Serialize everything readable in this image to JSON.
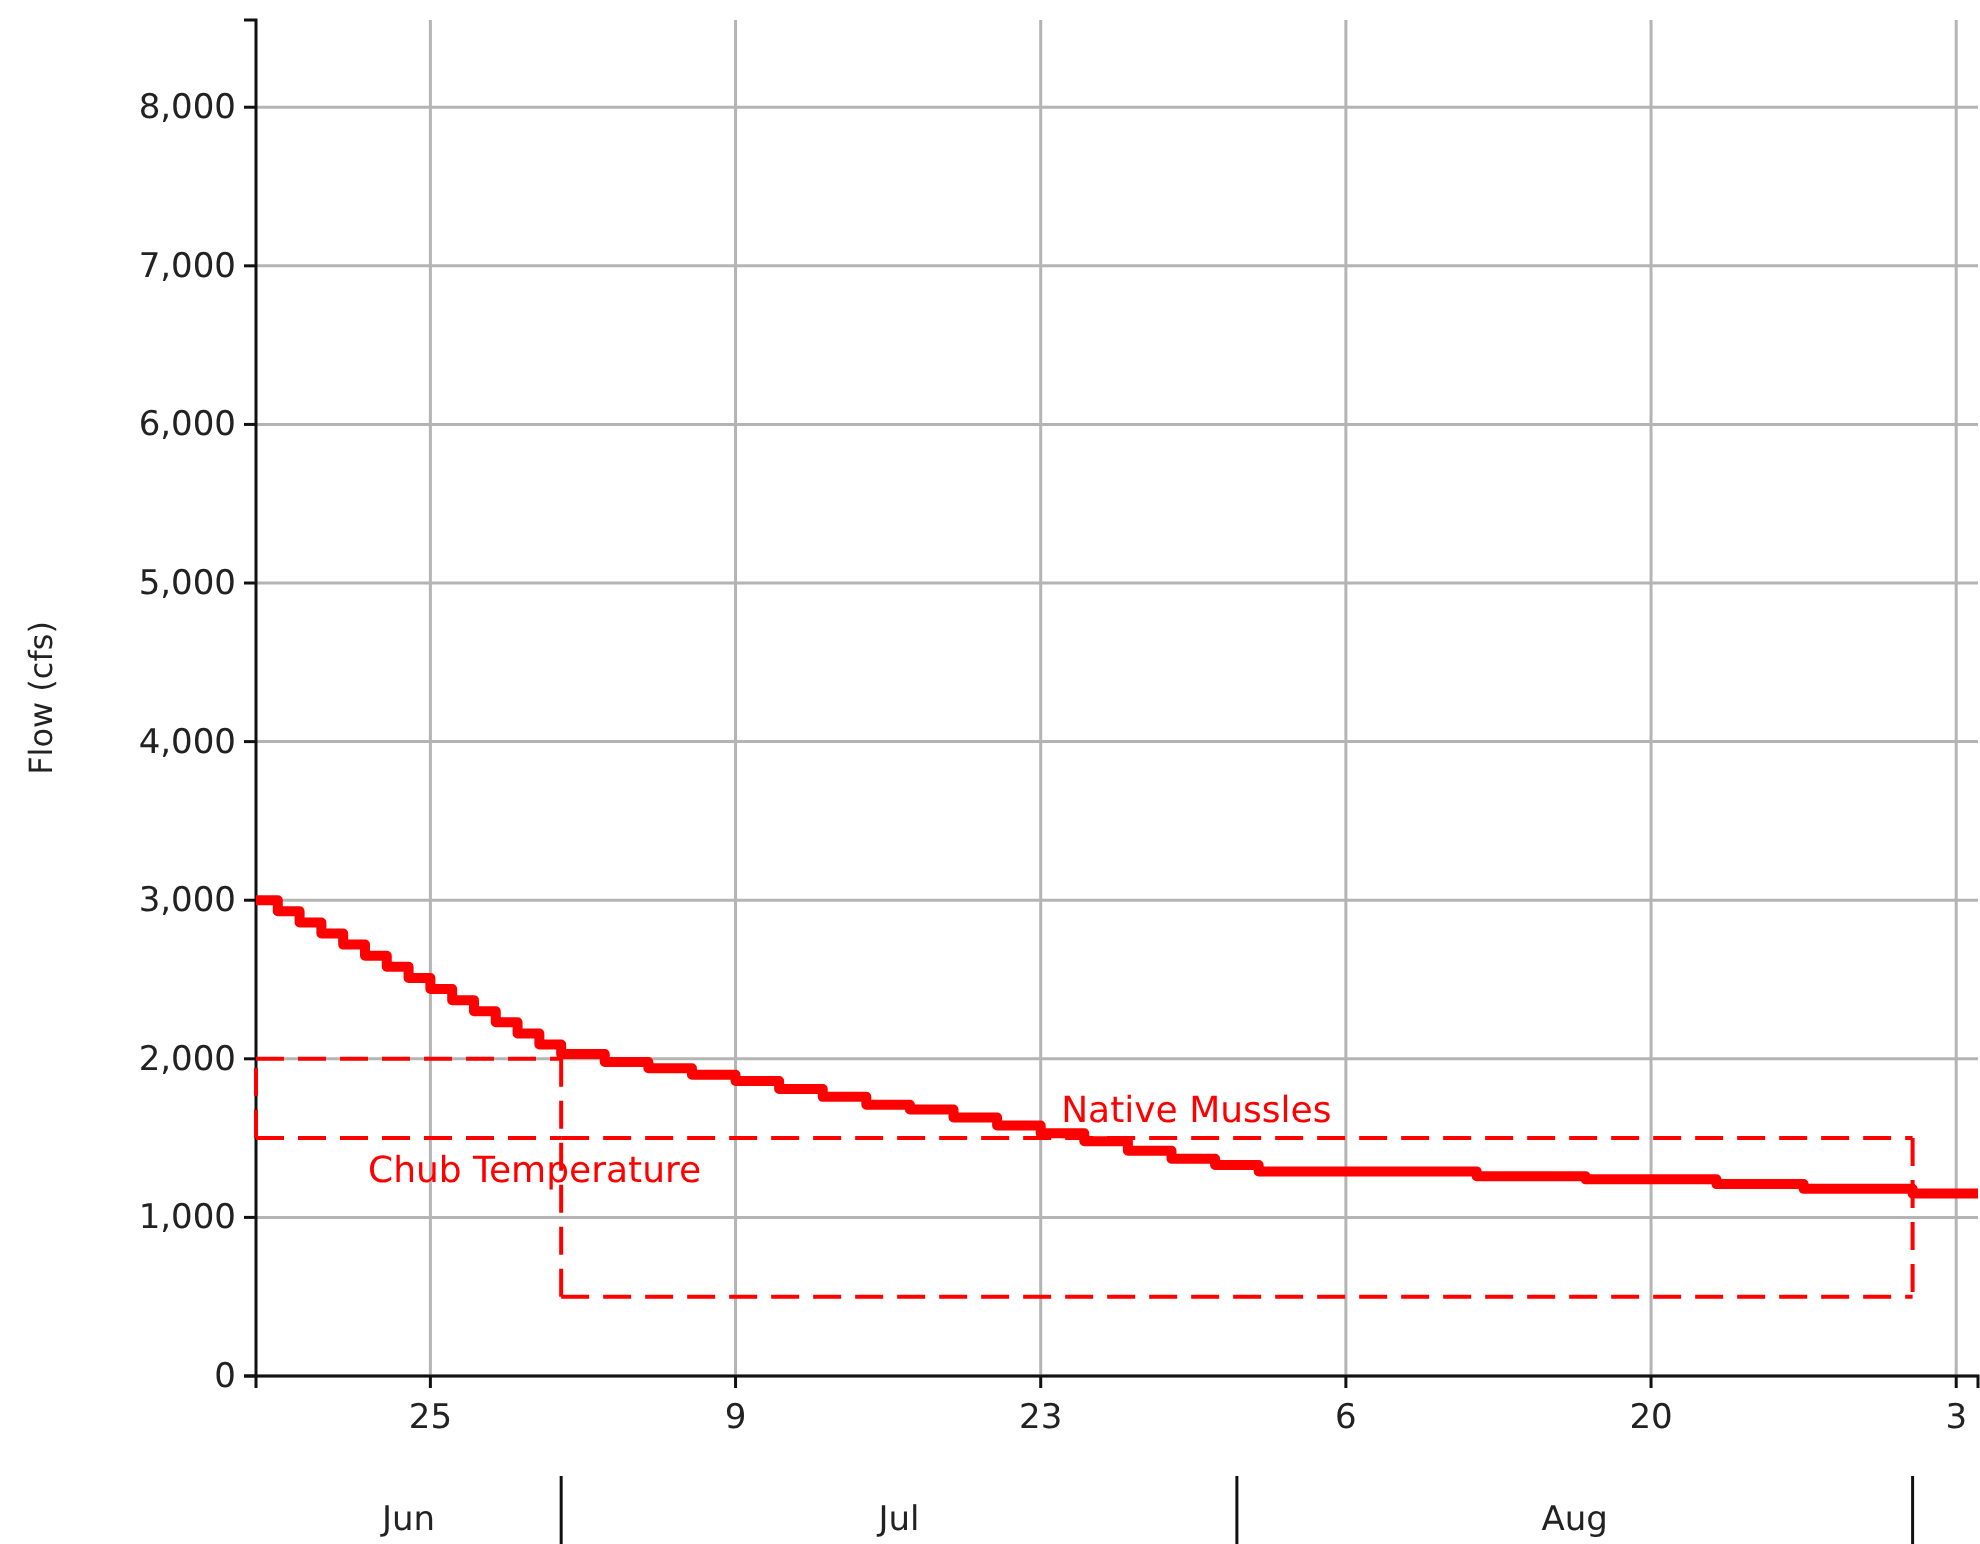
{
  "chart_data": {
    "type": "step",
    "ylabel": "Flow (cfs)",
    "xlim": [
      "--06-17",
      "--09-04"
    ],
    "xticks": [
      {
        "value": "--06-25",
        "label": "25"
      },
      {
        "value": "--07-09",
        "label": "9"
      },
      {
        "value": "--07-23",
        "label": "23"
      },
      {
        "value": "--08-06",
        "label": "6"
      },
      {
        "value": "--08-20",
        "label": "20"
      },
      {
        "value": "--09-03",
        "label": "3"
      }
    ],
    "ylim": [
      0,
      8550
    ],
    "yticks": [
      {
        "value": 0,
        "label": "0"
      },
      {
        "value": 1000,
        "label": "1,000"
      },
      {
        "value": 2000,
        "label": "2,000"
      },
      {
        "value": 3000,
        "label": "3,000"
      },
      {
        "value": 4000,
        "label": "4,000"
      },
      {
        "value": 5000,
        "label": "5,000"
      },
      {
        "value": 6000,
        "label": "6,000"
      },
      {
        "value": 7000,
        "label": "7,000"
      },
      {
        "value": 8000,
        "label": "8,000"
      }
    ],
    "grid": true,
    "legend": false,
    "marker": "none",
    "annotations": [
      "Jun",
      "Jul",
      "Aug"
    ],
    "series": [
      {
        "color": "#ff0000",
        "x": [
          "--06-17",
          "--06-18",
          "--06-19",
          "--06-20",
          "--06-21",
          "--06-22",
          "--06-23",
          "--06-24",
          "--06-25",
          "--06-26",
          "--06-27",
          "--06-28",
          "--06-29",
          "--06-30",
          "--07-01",
          "--07-03",
          "--07-05",
          "--07-07",
          "--07-09",
          "--07-11",
          "--07-13",
          "--07-15",
          "--07-17",
          "--07-19",
          "--07-21",
          "--07-23",
          "--07-25",
          "--07-27",
          "--07-29",
          "--07-31",
          "--08-02",
          "--08-12",
          "--08-17",
          "--08-23",
          "--08-27",
          "--09-01",
          "--09-04"
        ],
        "values": [
          3000,
          2930,
          2860,
          2790,
          2720,
          2650,
          2580,
          2510,
          2440,
          2370,
          2300,
          2230,
          2160,
          2090,
          2030,
          1980,
          1940,
          1900,
          1860,
          1810,
          1760,
          1710,
          1680,
          1630,
          1580,
          1530,
          1480,
          1420,
          1370,
          1330,
          1290,
          1260,
          1240,
          1210,
          1180,
          1150,
          1150
        ]
      },
      {
        "type": "line",
        "name": "Chub Temperature",
        "color": "#ff0000",
        "line_style": "dashed",
        "x": [
          "--06-17",
          "--06-17",
          "--07-01",
          "--07-01"
        ],
        "values": [
          1500,
          2000,
          2000,
          1500
        ]
      },
      {
        "type": "line",
        "color": "#ff0000",
        "line_style": "dashed",
        "x": [
          "--06-17",
          "--07-01"
        ],
        "values": [
          1500,
          1500
        ]
      },
      {
        "type": "line",
        "name": "Native Mussles",
        "color": "#ff0000",
        "line_style": "dashed",
        "x": [
          "--07-01",
          "--07-01",
          "--09-01",
          "--09-01"
        ],
        "values": [
          500,
          1500,
          1500,
          500
        ]
      },
      {
        "type": "line",
        "color": "#ff0000",
        "line_style": "dashed",
        "x": [
          "--07-01",
          "--09-01"
        ],
        "values": [
          500,
          500
        ]
      }
    ]
  }
}
